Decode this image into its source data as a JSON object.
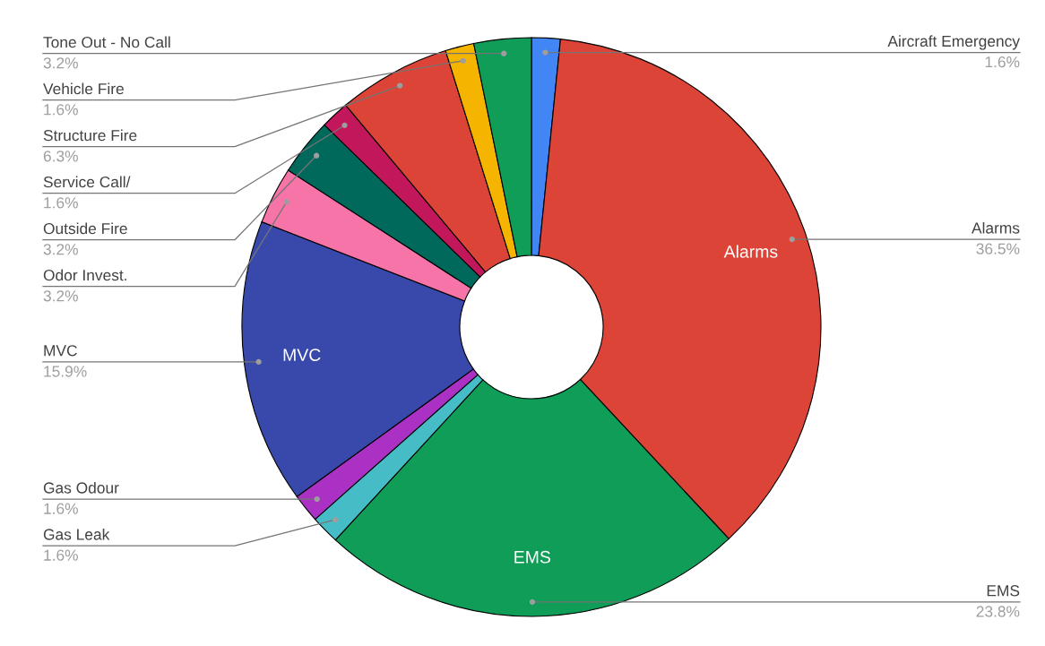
{
  "chart_data": {
    "type": "donut",
    "categories": [
      "Aircraft Emergency",
      "Alarms",
      "EMS",
      "Gas Leak",
      "Gas Odour",
      "MVC",
      "Odor Invest.",
      "Outside Fire",
      "Service Call/",
      "Structure Fire",
      "Vehicle Fire",
      "Tone Out - No Call"
    ],
    "values": [
      1.6,
      36.5,
      23.8,
      1.6,
      1.6,
      15.9,
      3.2,
      3.2,
      1.6,
      6.3,
      1.6,
      3.2
    ],
    "colors": [
      "#4285f4",
      "#db4437",
      "#0f9d58",
      "#46bdc6",
      "#ab30c4",
      "#3949ab",
      "#f774a8",
      "#00695c",
      "#c2185b",
      "#db4437",
      "#f4b400",
      "#0f9d58"
    ],
    "value_labels": [
      "1.6%",
      "36.5%",
      "23.8%",
      "1.6%",
      "1.6%",
      "15.9%",
      "3.2%",
      "3.2%",
      "1.6%",
      "6.3%",
      "1.6%",
      "3.2%"
    ]
  }
}
